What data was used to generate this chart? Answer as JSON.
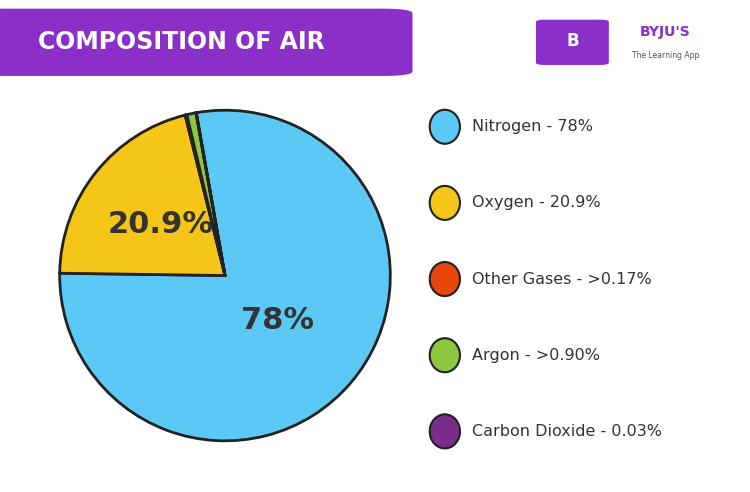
{
  "title": "COMPOSITION OF AIR",
  "title_bg_color": "#8B2FC9",
  "title_text_color": "#FFFFFF",
  "background_color": "#FFFFFF",
  "slices": [
    78,
    20.9,
    0.17,
    0.9,
    0.03
  ],
  "slice_labels": [
    "78%",
    "20.9%",
    "",
    "",
    ""
  ],
  "colors": [
    "#5BC8F5",
    "#F5C518",
    "#E8450A",
    "#8DC63F",
    "#7B2D8B"
  ],
  "edge_color": "#222222",
  "edge_width": 2.0,
  "legend_labels": [
    "Nitrogen - 78%",
    "Oxygen - 20.9%",
    "Other Gases - >0.17%",
    "Argon - >0.90%",
    "Carbon Dioxide - 0.03%"
  ],
  "legend_colors": [
    "#5BC8F5",
    "#F5C518",
    "#E8450A",
    "#8DC63F",
    "#7B2D8B"
  ],
  "startangle": 100,
  "label_fontsize": 22,
  "label_color": "#333333",
  "legend_fontsize": 11.5,
  "legend_text_color": "#333333"
}
